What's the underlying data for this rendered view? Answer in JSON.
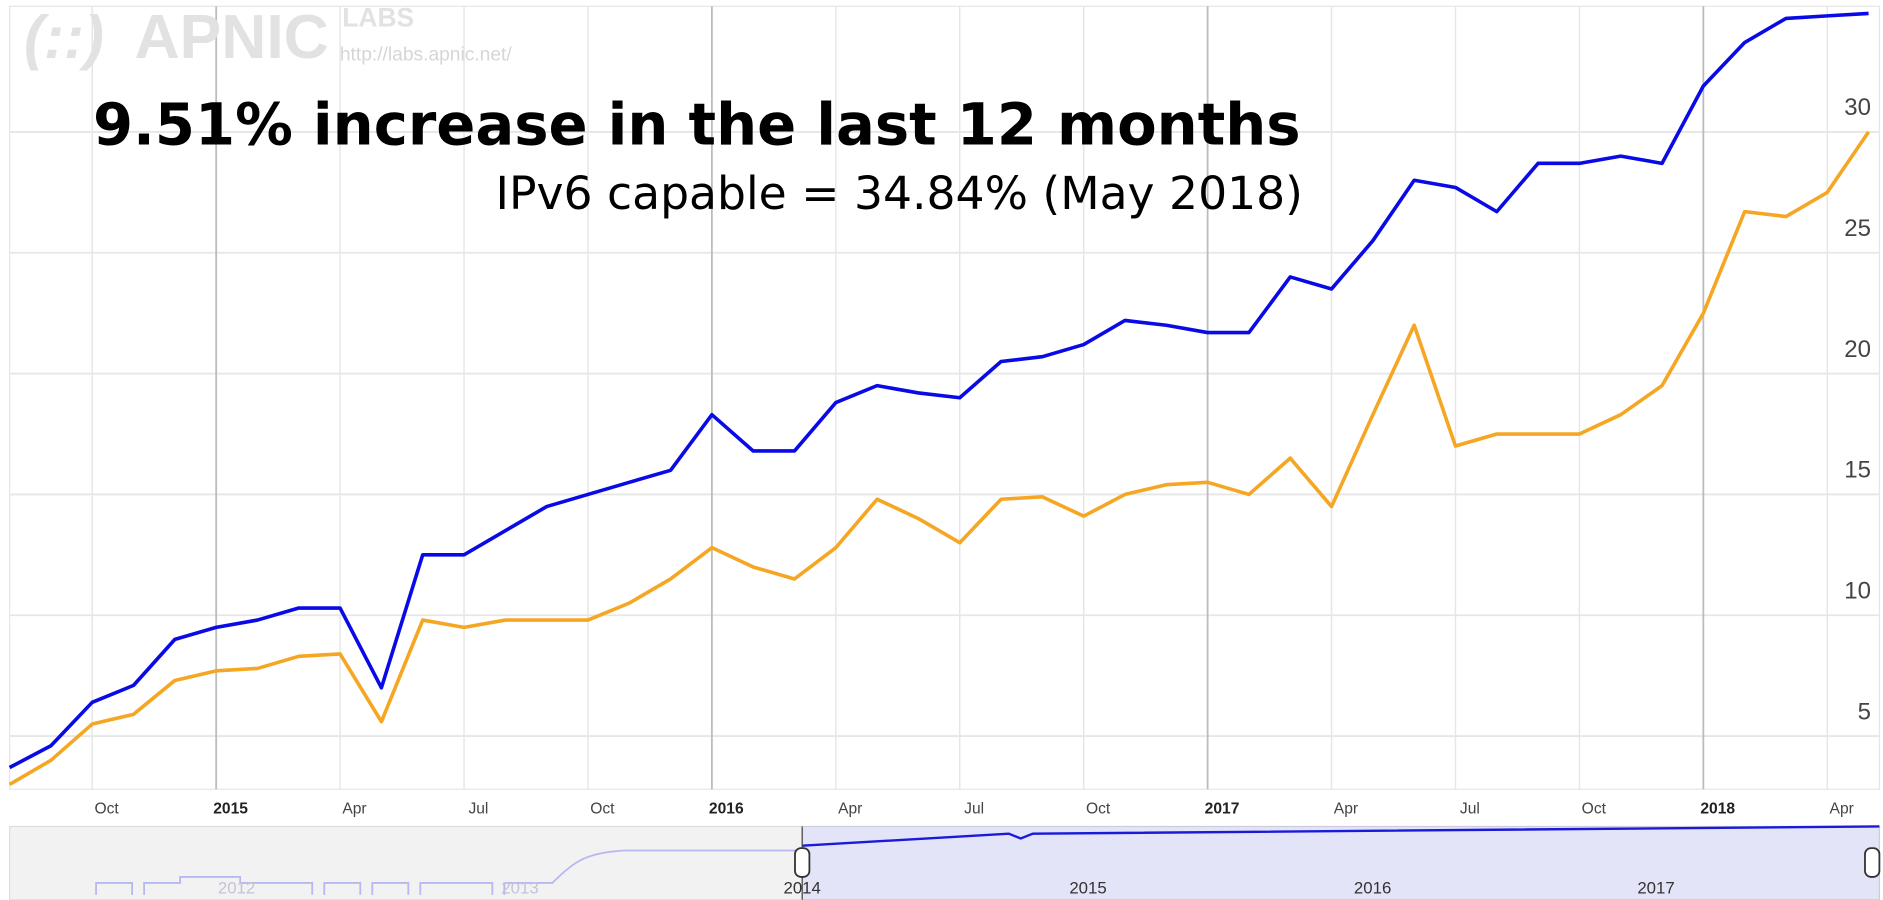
{
  "logo": {
    "mark": "(::)",
    "name": "APNIC",
    "labs": "LABS",
    "url": "http://labs.apnic.net/"
  },
  "chart_data": {
    "type": "line",
    "title": "9.51% increase in the last 12 months",
    "subtitle": "IPv6 capable = 34.84% (May 2018)",
    "x": [
      "2014-08",
      "2014-09",
      "2014-10",
      "2014-11",
      "2014-12",
      "2015-01",
      "2015-02",
      "2015-03",
      "2015-04",
      "2015-05",
      "2015-06",
      "2015-07",
      "2015-08",
      "2015-09",
      "2015-10",
      "2015-11",
      "2015-12",
      "2016-01",
      "2016-02",
      "2016-03",
      "2016-04",
      "2016-05",
      "2016-06",
      "2016-07",
      "2016-08",
      "2016-09",
      "2016-10",
      "2016-11",
      "2016-12",
      "2017-01",
      "2017-02",
      "2017-03",
      "2017-04",
      "2017-05",
      "2017-06",
      "2017-07",
      "2017-08",
      "2017-09",
      "2017-10",
      "2017-11",
      "2017-12",
      "2018-01",
      "2018-02",
      "2018-03",
      "2018-04",
      "2018-05"
    ],
    "series": [
      {
        "color": "#0a0ae6",
        "values": [
          3.7,
          4.6,
          6.4,
          7.1,
          9.0,
          9.5,
          9.8,
          10.3,
          10.3,
          7.0,
          12.5,
          12.5,
          13.5,
          14.5,
          15.0,
          15.5,
          16.0,
          18.3,
          16.8,
          16.8,
          18.8,
          19.5,
          19.2,
          19.0,
          20.5,
          20.7,
          21.2,
          22.2,
          22.0,
          21.7,
          21.7,
          24.0,
          23.5,
          25.5,
          28.0,
          27.7,
          26.7,
          28.7,
          28.7,
          29.0,
          28.7,
          31.9,
          33.7,
          34.7,
          34.8,
          34.9
        ]
      },
      {
        "color": "#f5a623",
        "values": [
          3.0,
          4.0,
          5.5,
          5.9,
          7.3,
          7.7,
          7.8,
          8.3,
          8.4,
          5.6,
          9.8,
          9.5,
          9.8,
          9.8,
          9.8,
          10.5,
          11.5,
          12.8,
          12.0,
          11.5,
          12.8,
          14.8,
          14.0,
          13.0,
          14.8,
          14.9,
          14.1,
          15.0,
          15.4,
          15.5,
          15.0,
          16.5,
          14.5,
          18.3,
          22.0,
          17.0,
          17.5,
          17.5,
          17.5,
          18.3,
          19.5,
          22.5,
          26.7,
          26.5,
          27.5,
          30.0
        ]
      }
    ],
    "xlim": [
      "2014-08",
      "2018-05"
    ],
    "xticks": [
      {
        "value": "2014-10",
        "label": "Oct"
      },
      {
        "value": "2015-01",
        "label": "2015"
      },
      {
        "value": "2015-04",
        "label": "Apr"
      },
      {
        "value": "2015-07",
        "label": "Jul"
      },
      {
        "value": "2015-10",
        "label": "Oct"
      },
      {
        "value": "2016-01",
        "label": "2016"
      },
      {
        "value": "2016-04",
        "label": "Apr"
      },
      {
        "value": "2016-07",
        "label": "Jul"
      },
      {
        "value": "2016-10",
        "label": "Oct"
      },
      {
        "value": "2017-01",
        "label": "2017"
      },
      {
        "value": "2017-04",
        "label": "Apr"
      },
      {
        "value": "2017-07",
        "label": "Jul"
      },
      {
        "value": "2017-10",
        "label": "Oct"
      },
      {
        "value": "2018-01",
        "label": "2018"
      },
      {
        "value": "2018-04",
        "label": "Apr"
      }
    ],
    "ylim": [
      2.8,
      35.2
    ],
    "yticks": [
      5,
      10,
      15,
      20,
      25,
      30
    ],
    "grid": true
  },
  "navigator": {
    "labels": [
      "2012",
      "2013",
      "2014",
      "2015",
      "2016",
      "2017"
    ]
  }
}
